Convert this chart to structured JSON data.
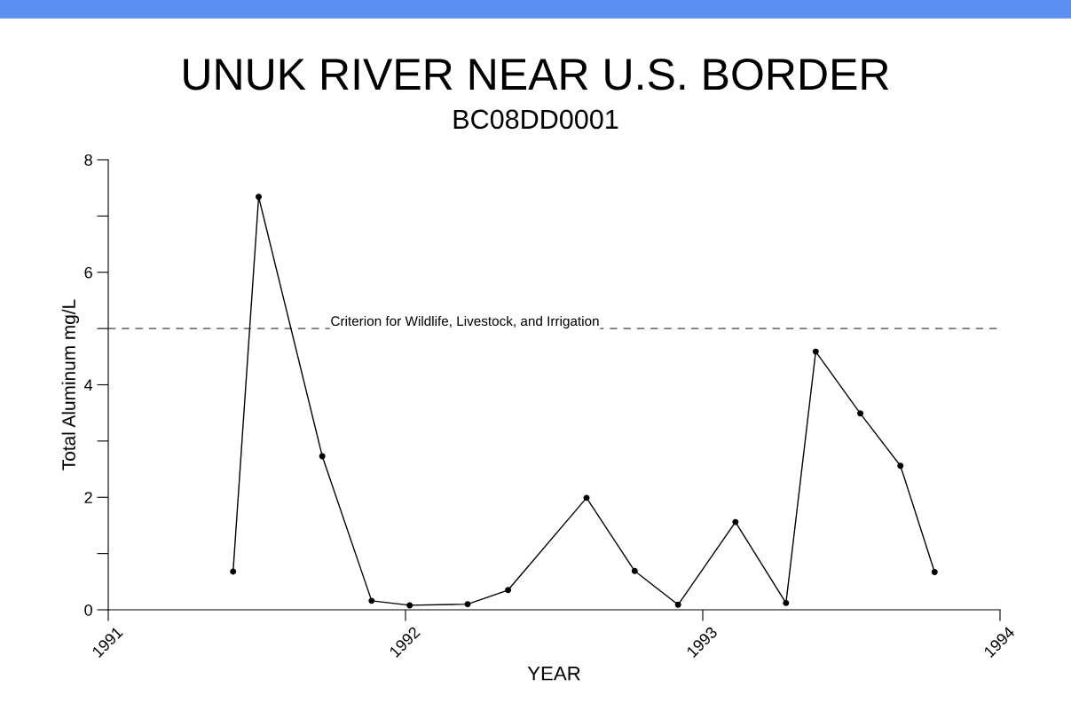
{
  "chart_data": {
    "type": "line",
    "title": "UNUK RIVER NEAR U.S. BORDER",
    "subtitle": "BC08DD0001",
    "xlabel": "YEAR",
    "ylabel": "Total Aluminum mg/L",
    "x": [
      1991.42,
      1991.506,
      1991.72,
      1991.886,
      1992.014,
      1992.209,
      1992.345,
      1992.609,
      1992.771,
      1992.917,
      1993.11,
      1993.28,
      1993.38,
      1993.53,
      1993.665,
      1993.78
    ],
    "series": [
      {
        "color": "#000000",
        "values": [
          0.68,
          7.34,
          2.73,
          0.16,
          0.08,
          0.1,
          0.35,
          1.99,
          0.69,
          0.09,
          1.56,
          0.12,
          4.59,
          3.49,
          2.56,
          0.67
        ]
      }
    ],
    "xlim": [
      1991,
      1994
    ],
    "xticks": [
      1991,
      1992,
      1993,
      1994
    ],
    "ylim": [
      0,
      8
    ],
    "yticks": [
      0,
      {
        "value": 1,
        "label": null
      },
      2,
      {
        "value": 3,
        "label": null
      },
      4,
      {
        "value": 5,
        "label": null
      },
      6,
      {
        "value": 7,
        "label": null
      },
      8
    ],
    "ref_lines": [
      {
        "axis": "y",
        "value": 5,
        "label": "Criterion for Wildlife, Livestock, and Irrigation",
        "color": "#404040",
        "line_style": "dashed"
      }
    ],
    "marker": "circle",
    "line_style": "solid",
    "grid": false,
    "legend": false
  }
}
